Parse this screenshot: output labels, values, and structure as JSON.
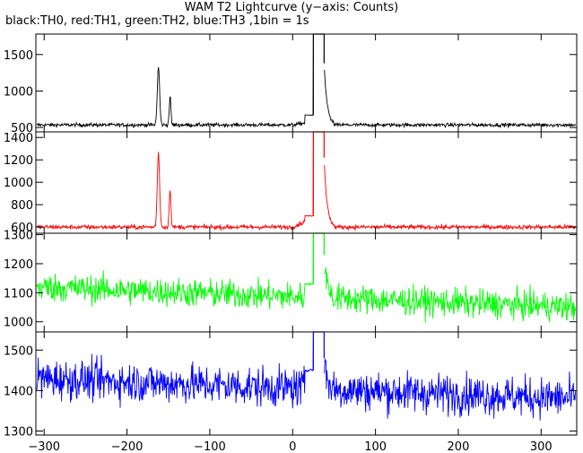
{
  "chart_data": {
    "type": "line",
    "title": "WAM T2 Lightcurve (y−axis: Counts)",
    "subtitle": "black:TH0, red:TH1, green:TH2, blue:TH3 ,1bin = 1s",
    "x_ticks": [
      -300,
      -200,
      -100,
      0,
      100,
      200,
      300
    ],
    "xlim": [
      -310,
      343
    ],
    "panels": [
      {
        "name": "TH0",
        "color": "#000000",
        "ylim": [
          440,
          1780
        ],
        "yticks": [
          500,
          1000,
          1500
        ],
        "baseline": 535,
        "noise": 18,
        "gap": [
          33,
          38
        ],
        "features": [
          {
            "x": -162,
            "y": 1330
          },
          {
            "x": -148,
            "y": 920
          },
          {
            "x": 0,
            "y": 560
          },
          {
            "x": 10,
            "y": 640
          },
          {
            "x": 15,
            "y": 670
          },
          {
            "x": 25,
            "y": 1780
          },
          {
            "x": 42,
            "y": 1380
          }
        ]
      },
      {
        "name": "TH1",
        "color": "#ff0000",
        "ylim": [
          545,
          1450
        ],
        "yticks": [
          600,
          800,
          1000,
          1200,
          1400
        ],
        "baseline": 600,
        "noise": 14,
        "gap": [
          33,
          38
        ],
        "features": [
          {
            "x": -162,
            "y": 1265
          },
          {
            "x": -148,
            "y": 950
          },
          {
            "x": 0,
            "y": 650
          },
          {
            "x": 10,
            "y": 680
          },
          {
            "x": 15,
            "y": 700
          },
          {
            "x": 25,
            "y": 1450
          },
          {
            "x": 42,
            "y": 1220
          }
        ]
      },
      {
        "name": "TH2",
        "color": "#00ff00",
        "ylim": [
          965,
          1305
        ],
        "yticks": [
          1000,
          1100,
          1200,
          1300
        ],
        "baseline_start": 1120,
        "baseline_end": 1050,
        "noise": 35,
        "gap": [
          33,
          38
        ],
        "features": [
          {
            "x": 15,
            "y": 1130
          },
          {
            "x": 25,
            "y": 1305
          },
          {
            "x": 42,
            "y": 1230
          }
        ]
      },
      {
        "name": "TH3",
        "color": "#0000ff",
        "ylim": [
          1290,
          1545
        ],
        "yticks": [
          1300,
          1400,
          1500
        ],
        "baseline_start": 1430,
        "baseline_end": 1380,
        "noise": 35,
        "gap": [
          33,
          38
        ],
        "features": [
          {
            "x": 15,
            "y": 1450
          },
          {
            "x": 25,
            "y": 1545
          },
          {
            "x": 42,
            "y": 1480
          }
        ]
      }
    ]
  }
}
